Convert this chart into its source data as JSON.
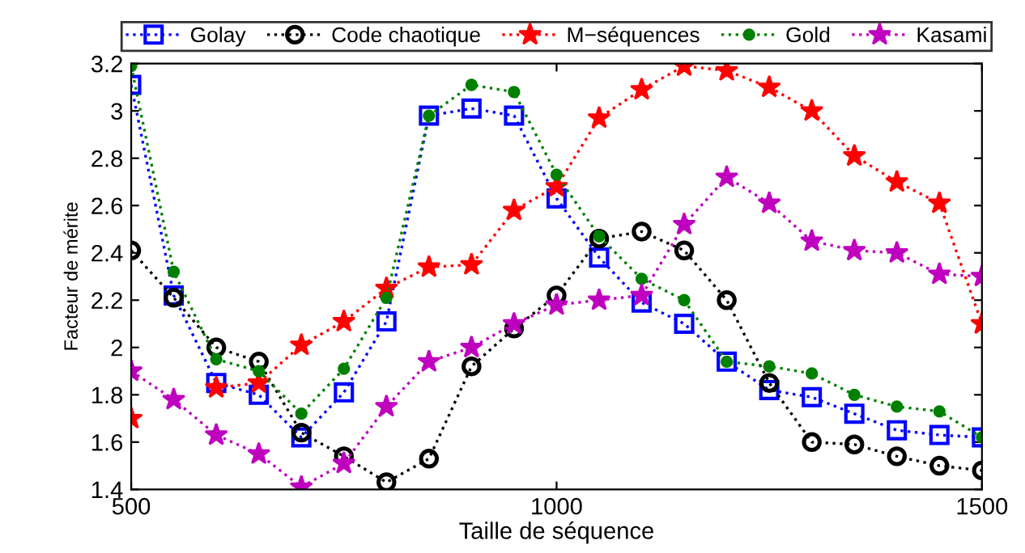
{
  "chart_data": {
    "type": "line",
    "xlabel": "Taille de séquence",
    "ylabel": "Facteur de mérite",
    "x": [
      500,
      550,
      600,
      650,
      700,
      750,
      800,
      850,
      900,
      950,
      1000,
      1050,
      1100,
      1150,
      1200,
      1250,
      1300,
      1350,
      1400,
      1450,
      1500
    ],
    "series": [
      {
        "name": "Golay",
        "color": "#0000ff",
        "marker": "square",
        "values": [
          3.11,
          2.22,
          1.85,
          1.8,
          1.62,
          1.81,
          2.11,
          2.98,
          3.01,
          2.98,
          2.63,
          2.38,
          2.19,
          2.1,
          1.94,
          1.82,
          1.79,
          1.72,
          1.65,
          1.63,
          1.62
        ]
      },
      {
        "name": "Code chaotique",
        "color": "#000000",
        "marker": "circle",
        "values": [
          2.41,
          2.21,
          2.0,
          1.94,
          1.64,
          1.54,
          1.43,
          1.53,
          1.92,
          2.08,
          2.22,
          2.46,
          2.49,
          2.41,
          2.2,
          1.85,
          1.6,
          1.59,
          1.54,
          1.5,
          1.48
        ]
      },
      {
        "name": "M−séquences",
        "color": "#ff0000",
        "marker": "star",
        "values": [
          1.7,
          null,
          1.83,
          1.85,
          2.01,
          2.11,
          2.25,
          2.34,
          2.35,
          2.58,
          2.68,
          2.97,
          3.09,
          3.19,
          3.17,
          3.1,
          3.0,
          2.81,
          2.7,
          2.61,
          2.1
        ]
      },
      {
        "name": "Gold",
        "color": "#008000",
        "marker": "circle_filled",
        "values": [
          3.19,
          2.32,
          1.95,
          1.9,
          1.72,
          1.91,
          2.21,
          2.98,
          3.11,
          3.08,
          2.73,
          2.47,
          2.29,
          2.2,
          1.94,
          1.92,
          1.89,
          1.8,
          1.75,
          1.73,
          1.62
        ]
      },
      {
        "name": "Kasami",
        "color": "#bf00bf",
        "marker": "star",
        "values": [
          1.9,
          1.78,
          1.63,
          1.55,
          1.41,
          1.51,
          1.75,
          1.94,
          2.0,
          2.1,
          2.18,
          2.2,
          2.22,
          2.52,
          2.72,
          2.61,
          2.45,
          2.41,
          2.4,
          2.31,
          2.3
        ]
      }
    ],
    "line_style": "dotted",
    "xlim": [
      500,
      1500
    ],
    "xticks": [
      500,
      1000,
      1500
    ],
    "ylim": [
      1.4,
      3.2
    ],
    "yticks": [
      {
        "value": 1.4,
        "label": "1.4"
      },
      {
        "value": 1.6,
        "label": "1.6"
      },
      {
        "value": 1.8,
        "label": "1.8"
      },
      {
        "value": 2,
        "label": "2"
      },
      {
        "value": 2.2,
        "label": "2.2"
      },
      {
        "value": 2.4,
        "label": "2.4"
      },
      {
        "value": 2.6,
        "label": "2.6"
      },
      {
        "value": 2.8,
        "label": "2.8"
      },
      {
        "value": 3,
        "label": "3"
      },
      {
        "value": 3.2,
        "label": "3.2"
      }
    ],
    "grid": false,
    "legend": "top"
  }
}
